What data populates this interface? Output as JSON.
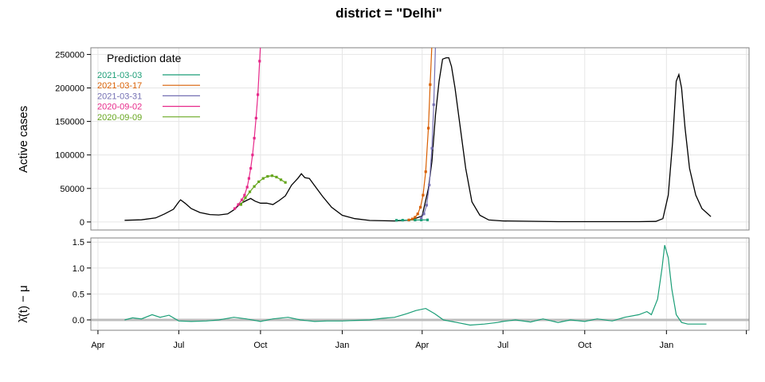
{
  "chart_data": [
    {
      "type": "line",
      "title": "district = \"Delhi\"",
      "xlabel": "",
      "ylabel": "Active cases",
      "ylim": [
        -12000,
        260000
      ],
      "y_ticks": [
        0,
        50000,
        100000,
        150000,
        200000,
        250000
      ],
      "y_tick_labels": [
        "0",
        "50000",
        "100000",
        "150000",
        "200000",
        "250000"
      ],
      "x_ticks": [
        "2020-04-01",
        "2020-07-01",
        "2020-10-01",
        "2021-01-01",
        "2021-04-01",
        "2021-07-01",
        "2021-10-01",
        "2022-01-01",
        "2022-04-01"
      ],
      "x_tick_labels": [
        "Apr",
        "Jul",
        "Oct",
        "Jan",
        "Apr",
        "Jul",
        "Oct",
        "Jan",
        ""
      ],
      "xlim": [
        "2020-03-24",
        "2022-04-04"
      ],
      "grid": true,
      "legend": {
        "title": "Prediction date",
        "placement": "top-left",
        "entries": [
          {
            "label": "2021-03-03",
            "color": "#1b9e77"
          },
          {
            "label": "2021-03-17",
            "color": "#d95f02"
          },
          {
            "label": "2021-03-31",
            "color": "#7570b3"
          },
          {
            "label": "2020-09-02",
            "color": "#e7298a"
          },
          {
            "label": "2020-09-09",
            "color": "#66a61e"
          }
        ]
      },
      "series": [
        {
          "color": "#000000",
          "style": "line",
          "points": [
            [
              "2020-05-01",
              2500
            ],
            [
              "2020-05-20",
              3200
            ],
            [
              "2020-06-05",
              6000
            ],
            [
              "2020-06-15",
              12000
            ],
            [
              "2020-06-25",
              19000
            ],
            [
              "2020-07-01",
              30000
            ],
            [
              "2020-07-03",
              33000
            ],
            [
              "2020-07-08",
              28000
            ],
            [
              "2020-07-15",
              20000
            ],
            [
              "2020-07-25",
              14000
            ],
            [
              "2020-08-05",
              11000
            ],
            [
              "2020-08-15",
              10500
            ],
            [
              "2020-08-25",
              12000
            ],
            [
              "2020-09-01",
              18000
            ],
            [
              "2020-09-08",
              27000
            ],
            [
              "2020-09-15",
              32000
            ],
            [
              "2020-09-20",
              35000
            ],
            [
              "2020-09-25",
              31000
            ],
            [
              "2020-10-01",
              28000
            ],
            [
              "2020-10-08",
              28000
            ],
            [
              "2020-10-15",
              26000
            ],
            [
              "2020-10-22",
              32000
            ],
            [
              "2020-10-29",
              39000
            ],
            [
              "2020-11-05",
              55000
            ],
            [
              "2020-11-12",
              65000
            ],
            [
              "2020-11-16",
              72000
            ],
            [
              "2020-11-20",
              66000
            ],
            [
              "2020-11-25",
              65000
            ],
            [
              "2020-12-01",
              54000
            ],
            [
              "2020-12-10",
              38000
            ],
            [
              "2020-12-20",
              22000
            ],
            [
              "2021-01-01",
              10000
            ],
            [
              "2021-01-15",
              5000
            ],
            [
              "2021-02-01",
              2200
            ],
            [
              "2021-03-01",
              1500
            ],
            [
              "2021-03-20",
              3000
            ],
            [
              "2021-04-01",
              9000
            ],
            [
              "2021-04-08",
              50000
            ],
            [
              "2021-04-12",
              90000
            ],
            [
              "2021-04-16",
              160000
            ],
            [
              "2021-04-20",
              210000
            ],
            [
              "2021-04-24",
              243000
            ],
            [
              "2021-04-28",
              245000
            ],
            [
              "2021-05-01",
              245000
            ],
            [
              "2021-05-04",
              232000
            ],
            [
              "2021-05-08",
              200000
            ],
            [
              "2021-05-14",
              140000
            ],
            [
              "2021-05-20",
              80000
            ],
            [
              "2021-05-27",
              30000
            ],
            [
              "2021-06-05",
              10000
            ],
            [
              "2021-06-15",
              3000
            ],
            [
              "2021-07-01",
              1500
            ],
            [
              "2021-09-01",
              500
            ],
            [
              "2021-12-01",
              500
            ],
            [
              "2021-12-20",
              800
            ],
            [
              "2021-12-28",
              5000
            ],
            [
              "2022-01-03",
              40000
            ],
            [
              "2022-01-08",
              120000
            ],
            [
              "2022-01-12",
              210000
            ],
            [
              "2022-01-15",
              220000
            ],
            [
              "2022-01-18",
              200000
            ],
            [
              "2022-01-22",
              140000
            ],
            [
              "2022-01-27",
              80000
            ],
            [
              "2022-02-03",
              40000
            ],
            [
              "2022-02-10",
              20000
            ],
            [
              "2022-02-20",
              8000
            ]
          ]
        },
        {
          "name": "2020-09-02",
          "color": "#e7298a",
          "style": "line-points",
          "points": [
            [
              "2020-09-02",
              20000
            ],
            [
              "2020-09-06",
              26000
            ],
            [
              "2020-09-10",
              33000
            ],
            [
              "2020-09-13",
              40000
            ],
            [
              "2020-09-16",
              52000
            ],
            [
              "2020-09-18",
              65000
            ],
            [
              "2020-09-20",
              80000
            ],
            [
              "2020-09-22",
              100000
            ],
            [
              "2020-09-24",
              125000
            ],
            [
              "2020-09-26",
              155000
            ],
            [
              "2020-09-28",
              190000
            ],
            [
              "2020-09-30",
              240000
            ],
            [
              "2020-10-01",
              265000
            ]
          ]
        },
        {
          "name": "2020-09-09",
          "color": "#66a61e",
          "style": "line-points",
          "points": [
            [
              "2020-09-09",
              26000
            ],
            [
              "2020-09-14",
              36000
            ],
            [
              "2020-09-19",
              45000
            ],
            [
              "2020-09-24",
              53000
            ],
            [
              "2020-09-29",
              60000
            ],
            [
              "2020-10-04",
              65000
            ],
            [
              "2020-10-09",
              68000
            ],
            [
              "2020-10-14",
              69000
            ],
            [
              "2020-10-19",
              67000
            ],
            [
              "2020-10-24",
              63000
            ],
            [
              "2020-10-29",
              59000
            ]
          ]
        },
        {
          "name": "2021-03-03",
          "color": "#1b9e77",
          "style": "line-points",
          "points": [
            [
              "2021-03-03",
              2500
            ],
            [
              "2021-03-10",
              2700
            ],
            [
              "2021-03-17",
              2800
            ],
            [
              "2021-03-24",
              2900
            ],
            [
              "2021-03-31",
              3000
            ],
            [
              "2021-04-07",
              3100
            ]
          ]
        },
        {
          "name": "2021-03-17",
          "color": "#d95f02",
          "style": "line-points",
          "points": [
            [
              "2021-03-17",
              3000
            ],
            [
              "2021-03-21",
              4500
            ],
            [
              "2021-03-24",
              7000
            ],
            [
              "2021-03-27",
              12000
            ],
            [
              "2021-03-30",
              22000
            ],
            [
              "2021-04-02",
              40000
            ],
            [
              "2021-04-05",
              75000
            ],
            [
              "2021-04-08",
              140000
            ],
            [
              "2021-04-10",
              205000
            ],
            [
              "2021-04-12",
              265000
            ]
          ]
        },
        {
          "name": "2021-03-31",
          "color": "#7570b3",
          "style": "line-points",
          "points": [
            [
              "2021-03-31",
              6000
            ],
            [
              "2021-04-03",
              12000
            ],
            [
              "2021-04-06",
              25000
            ],
            [
              "2021-04-09",
              55000
            ],
            [
              "2021-04-12",
              110000
            ],
            [
              "2021-04-14",
              175000
            ],
            [
              "2021-04-16",
              265000
            ]
          ]
        }
      ]
    },
    {
      "type": "line",
      "title": "",
      "xlabel": "",
      "ylabel": "λ̂(t) − μ",
      "ylim": [
        -0.2,
        1.58
      ],
      "y_ticks": [
        0,
        0.5,
        1,
        1.5
      ],
      "y_tick_labels": [
        "0.0",
        "0.5",
        "1.0",
        "1.5"
      ],
      "reference_line": 0,
      "grid": true,
      "series": [
        {
          "color": "#1b9e77",
          "points": [
            [
              "2020-05-01",
              0.0
            ],
            [
              "2020-05-10",
              0.04
            ],
            [
              "2020-05-20",
              0.02
            ],
            [
              "2020-06-01",
              0.1
            ],
            [
              "2020-06-10",
              0.05
            ],
            [
              "2020-06-20",
              0.09
            ],
            [
              "2020-07-01",
              -0.02
            ],
            [
              "2020-07-15",
              -0.03
            ],
            [
              "2020-08-01",
              -0.02
            ],
            [
              "2020-08-15",
              0.0
            ],
            [
              "2020-09-01",
              0.05
            ],
            [
              "2020-09-15",
              0.02
            ],
            [
              "2020-10-01",
              -0.03
            ],
            [
              "2020-10-15",
              0.02
            ],
            [
              "2020-11-01",
              0.05
            ],
            [
              "2020-11-15",
              0.0
            ],
            [
              "2020-12-01",
              -0.03
            ],
            [
              "2020-12-15",
              -0.02
            ],
            [
              "2021-01-01",
              -0.02
            ],
            [
              "2021-01-15",
              -0.01
            ],
            [
              "2021-02-01",
              0.0
            ],
            [
              "2021-02-15",
              0.03
            ],
            [
              "2021-03-01",
              0.05
            ],
            [
              "2021-03-15",
              0.12
            ],
            [
              "2021-03-25",
              0.18
            ],
            [
              "2021-04-05",
              0.22
            ],
            [
              "2021-04-15",
              0.12
            ],
            [
              "2021-04-25",
              0.0
            ],
            [
              "2021-05-10",
              -0.05
            ],
            [
              "2021-05-25",
              -0.1
            ],
            [
              "2021-06-10",
              -0.08
            ],
            [
              "2021-06-25",
              -0.05
            ],
            [
              "2021-07-01",
              -0.03
            ],
            [
              "2021-07-15",
              0.0
            ],
            [
              "2021-08-01",
              -0.04
            ],
            [
              "2021-08-15",
              0.02
            ],
            [
              "2021-09-01",
              -0.05
            ],
            [
              "2021-09-15",
              0.0
            ],
            [
              "2021-10-01",
              -0.03
            ],
            [
              "2021-10-15",
              0.02
            ],
            [
              "2021-11-01",
              -0.02
            ],
            [
              "2021-11-15",
              0.05
            ],
            [
              "2021-12-01",
              0.1
            ],
            [
              "2021-12-10",
              0.16
            ],
            [
              "2021-12-15",
              0.1
            ],
            [
              "2021-12-22",
              0.4
            ],
            [
              "2021-12-27",
              1.0
            ],
            [
              "2021-12-30",
              1.44
            ],
            [
              "2022-01-03",
              1.2
            ],
            [
              "2022-01-07",
              0.6
            ],
            [
              "2022-01-12",
              0.1
            ],
            [
              "2022-01-18",
              -0.05
            ],
            [
              "2022-01-25",
              -0.08
            ],
            [
              "2022-02-10",
              -0.08
            ],
            [
              "2022-02-15",
              -0.08
            ]
          ]
        }
      ]
    }
  ]
}
